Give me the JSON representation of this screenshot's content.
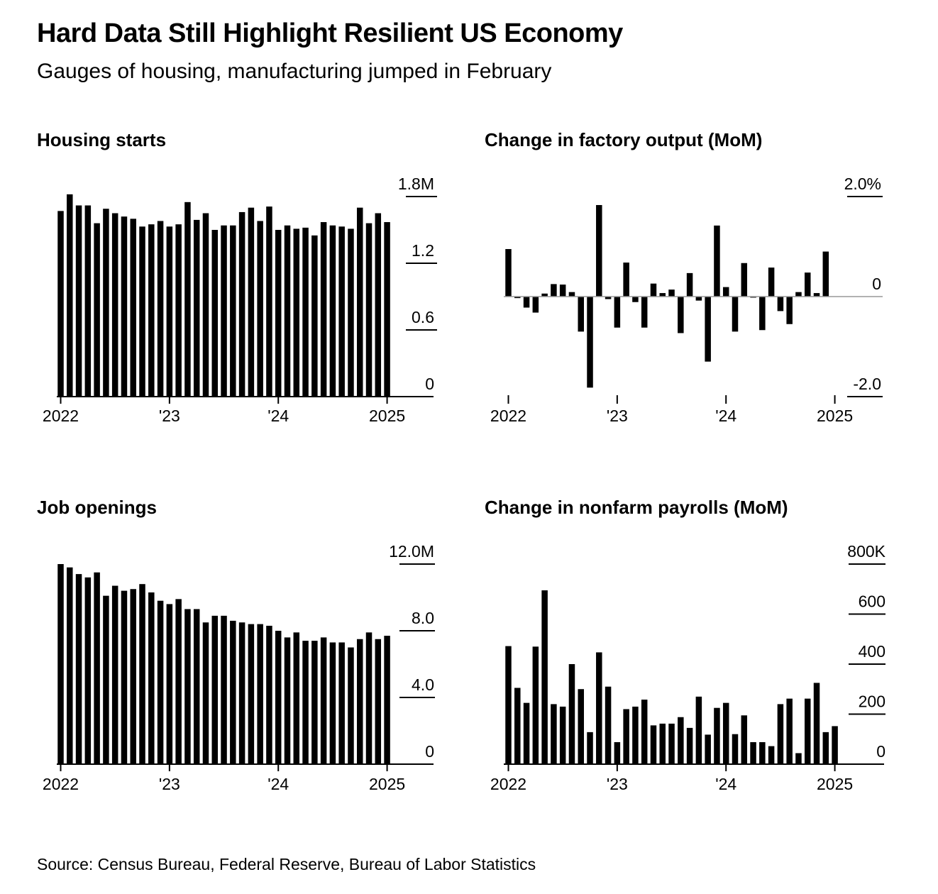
{
  "title": "Hard Data Still Highlight Resilient US Economy",
  "subtitle": "Gauges of housing, manufacturing jumped in February",
  "source": "Source: Census Bureau, Federal Reserve, Bureau of Labor Statistics",
  "colors": {
    "bar": "#000000",
    "background": "#ffffff"
  },
  "chart_data": [
    {
      "type": "bar",
      "title": "Housing starts",
      "x_ticks": [
        "2022",
        "'23",
        "'24",
        "2025"
      ],
      "y_ticks": [
        "1.8M",
        "1.2",
        "0.6",
        "0"
      ],
      "ylim": [
        0,
        1.8
      ],
      "y_tick_values": [
        1.8,
        1.2,
        0.6,
        0
      ],
      "x_tick_months": [
        0,
        12,
        24,
        36
      ],
      "start": "2022-01",
      "values": [
        1.67,
        1.82,
        1.72,
        1.72,
        1.56,
        1.69,
        1.65,
        1.62,
        1.6,
        1.53,
        1.55,
        1.58,
        1.53,
        1.55,
        1.75,
        1.59,
        1.65,
        1.5,
        1.54,
        1.54,
        1.66,
        1.7,
        1.58,
        1.71,
        1.5,
        1.54,
        1.51,
        1.52,
        1.45,
        1.57,
        1.54,
        1.53,
        1.51,
        1.7,
        1.56,
        1.65,
        1.57
      ]
    },
    {
      "type": "bar",
      "title": "Change in factory output (MoM)",
      "x_ticks": [
        "2022",
        "'23",
        "'24",
        "2025"
      ],
      "y_ticks": [
        "2.0%",
        "0",
        "-2.0"
      ],
      "ylim": [
        -2.0,
        2.0
      ],
      "y_tick_values": [
        2.0,
        0,
        -2.0
      ],
      "x_tick_months": [
        0,
        12,
        24,
        36
      ],
      "start": "2022-01",
      "values": [
        0.95,
        -0.03,
        -0.22,
        -0.32,
        0.06,
        0.25,
        0.24,
        0.09,
        -0.7,
        -1.82,
        1.83,
        -0.05,
        -0.62,
        0.68,
        -0.11,
        -0.62,
        0.26,
        0.07,
        0.14,
        -0.73,
        0.47,
        -0.08,
        -1.3,
        1.42,
        0.19,
        -0.7,
        0.67,
        -0.01,
        -0.67,
        0.58,
        -0.29,
        -0.55,
        0.09,
        0.48,
        0.07,
        0.9
      ]
    },
    {
      "type": "bar",
      "title": "Job openings",
      "x_ticks": [
        "2022",
        "'23",
        "'24",
        "2025"
      ],
      "y_ticks": [
        "12.0M",
        "8.0",
        "4.0",
        "0"
      ],
      "ylim": [
        0,
        12.0
      ],
      "y_tick_values": [
        12.0,
        8.0,
        4.0,
        0
      ],
      "x_tick_months": [
        0,
        12,
        24,
        36
      ],
      "start": "2022-01",
      "values": [
        12.0,
        11.8,
        11.4,
        11.2,
        11.5,
        10.1,
        10.7,
        10.4,
        10.5,
        10.8,
        10.3,
        9.8,
        9.6,
        9.9,
        9.3,
        9.3,
        8.5,
        8.9,
        8.9,
        8.6,
        8.5,
        8.4,
        8.4,
        8.3,
        8.0,
        7.6,
        7.9,
        7.4,
        7.4,
        7.6,
        7.3,
        7.3,
        7.0,
        7.5,
        7.9,
        7.5,
        7.7
      ]
    },
    {
      "type": "bar",
      "title": "Change in nonfarm payrolls (MoM)",
      "x_ticks": [
        "2022",
        "'23",
        "'24",
        "2025"
      ],
      "y_ticks": [
        "800K",
        "600",
        "400",
        "200",
        "0"
      ],
      "ylim": [
        0,
        800
      ],
      "y_tick_values": [
        800,
        600,
        400,
        200,
        0
      ],
      "x_tick_months": [
        0,
        12,
        24,
        36
      ],
      "start": "2022-01",
      "values": [
        472,
        305,
        245,
        470,
        695,
        240,
        230,
        400,
        300,
        128,
        447,
        310,
        88,
        220,
        230,
        258,
        155,
        162,
        162,
        188,
        145,
        270,
        118,
        225,
        245,
        120,
        195,
        88,
        88,
        72,
        240,
        262,
        44,
        262,
        325,
        128,
        152
      ]
    }
  ]
}
